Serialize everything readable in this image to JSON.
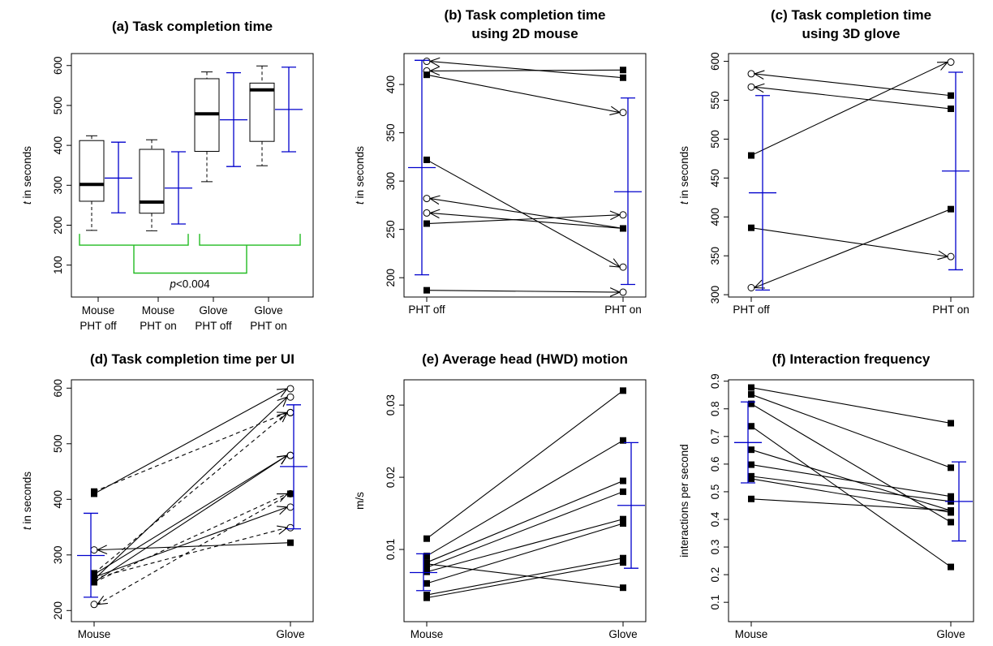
{
  "chart_data": [
    {
      "id": "a",
      "type": "box",
      "title": [
        "(a) Task completion time"
      ],
      "ylabel_italic": "t",
      "ylabel": " in seconds",
      "ylim": [
        20,
        630
      ],
      "yticks": [
        100,
        200,
        300,
        400,
        500,
        600
      ],
      "categories": [
        {
          "line1": "Mouse",
          "line2": "PHT off"
        },
        {
          "line1": "Mouse",
          "line2": "PHT on"
        },
        {
          "line1": "Glove",
          "line2": "PHT off"
        },
        {
          "line1": "Glove",
          "line2": "PHT on"
        }
      ],
      "boxes": [
        {
          "min": 187,
          "q1": 260,
          "median": 302,
          "q3": 412,
          "max": 424
        },
        {
          "min": 186,
          "q1": 230,
          "median": 258,
          "q3": 390,
          "max": 414
        },
        {
          "min": 309,
          "q1": 385,
          "median": 479,
          "q3": 567,
          "max": 584
        },
        {
          "min": 349,
          "q1": 410,
          "median": 539,
          "q3": 556,
          "max": 599
        }
      ],
      "mean_sd": [
        {
          "mean": 318,
          "lo": 231,
          "hi": 408
        },
        {
          "mean": 293,
          "lo": 203,
          "hi": 384
        },
        {
          "mean": 464,
          "lo": 347,
          "hi": 582
        },
        {
          "mean": 490,
          "lo": 384,
          "hi": 596
        }
      ],
      "annotation": {
        "p_italic": "p",
        "p_rest": "<0.004"
      },
      "colors": {
        "mean": "#0000cc",
        "bracket": "#22bb22"
      }
    },
    {
      "id": "b",
      "type": "paired",
      "title": [
        "(b) Task completion time",
        "using 2D mouse"
      ],
      "ylabel_italic": "t",
      "ylabel": " in seconds",
      "ylim": [
        180,
        432
      ],
      "yticks": [
        200,
        250,
        300,
        350,
        400
      ],
      "categories": [
        "PHT off",
        "PHT on"
      ],
      "pairs": [
        {
          "from": 424,
          "to": 407,
          "arrow": "left"
        },
        {
          "from": 414,
          "to": 415,
          "arrow": "left"
        },
        {
          "from": 410,
          "to": 371,
          "arrow": "right"
        },
        {
          "from": 322,
          "to": 211,
          "arrow": "right"
        },
        {
          "from": 282,
          "to": 251,
          "arrow": "left"
        },
        {
          "from": 267,
          "to": 251,
          "arrow": "left"
        },
        {
          "from": 256,
          "to": 265,
          "arrow": "right"
        },
        {
          "from": 187,
          "to": 185,
          "arrow": "right"
        }
      ],
      "mean_sd": [
        {
          "mean": 314,
          "lo": 203,
          "hi": 425
        },
        {
          "mean": 289,
          "lo": 193,
          "hi": 386
        }
      ]
    },
    {
      "id": "c",
      "type": "paired",
      "title": [
        "(c) Task completion time",
        "using 3D glove"
      ],
      "ylabel_italic": "t",
      "ylabel": " in seconds",
      "ylim": [
        297,
        610
      ],
      "yticks": [
        300,
        350,
        400,
        450,
        500,
        550,
        600
      ],
      "categories": [
        "PHT off",
        "PHT on"
      ],
      "pairs": [
        {
          "from": 584,
          "to": 556,
          "arrow": "left"
        },
        {
          "from": 567,
          "to": 539,
          "arrow": "left"
        },
        {
          "from": 479,
          "to": 599,
          "arrow": "right"
        },
        {
          "from": 386,
          "to": 349,
          "arrow": "right"
        },
        {
          "from": 309,
          "to": 410,
          "arrow": "left"
        }
      ],
      "mean_sd": [
        {
          "mean": 431,
          "lo": 306,
          "hi": 556
        },
        {
          "mean": 459,
          "lo": 332,
          "hi": 586
        }
      ]
    },
    {
      "id": "d",
      "type": "paired",
      "title": [
        "(d) Task completion time per UI"
      ],
      "ylabel_italic": "t",
      "ylabel": " in seconds",
      "ylim": [
        180,
        615
      ],
      "yticks": [
        200,
        300,
        400,
        500,
        600
      ],
      "categories": [
        "Mouse",
        "Glove"
      ],
      "pairs": [
        {
          "from": 410,
          "to": 599,
          "arrow": "right",
          "dash": false
        },
        {
          "from": 414,
          "to": 556,
          "arrow": "right",
          "dash": true
        },
        {
          "from": 256,
          "to": 584,
          "arrow": "right",
          "dash": false
        },
        {
          "from": 267,
          "to": 556,
          "arrow": "right",
          "dash": true
        },
        {
          "from": 251,
          "to": 479,
          "arrow": "right",
          "dash": false
        },
        {
          "from": 265,
          "to": 479,
          "arrow": "right",
          "dash": false
        },
        {
          "from": 251,
          "to": 410,
          "arrow": "right",
          "dash": true
        },
        {
          "from": 260,
          "to": 386,
          "arrow": "right",
          "dash": false
        },
        {
          "from": 258,
          "to": 349,
          "arrow": "right",
          "dash": true
        },
        {
          "from": 309,
          "to": 322,
          "arrow": "left",
          "dash": false
        },
        {
          "from": 211,
          "to": 410,
          "arrow": "left",
          "dash": true
        }
      ],
      "mean_sd": [
        {
          "mean": 299,
          "lo": 224,
          "hi": 375
        },
        {
          "mean": 459,
          "lo": 347,
          "hi": 570
        }
      ]
    },
    {
      "id": "e",
      "type": "paired",
      "title": [
        "(e) Average head (HWD) motion"
      ],
      "ylabel_italic": "",
      "ylabel": "m/s",
      "ylim": [
        0.0,
        0.0335
      ],
      "yticks": [
        0.01,
        0.02,
        0.03
      ],
      "categories": [
        "Mouse",
        "Glove"
      ],
      "pairs": [
        {
          "from": 0.0115,
          "to": 0.032,
          "arrow": "none"
        },
        {
          "from": 0.0091,
          "to": 0.0251,
          "arrow": "none"
        },
        {
          "from": 0.0082,
          "to": 0.0195,
          "arrow": "none"
        },
        {
          "from": 0.0075,
          "to": 0.018,
          "arrow": "none"
        },
        {
          "from": 0.0069,
          "to": 0.0142,
          "arrow": "none"
        },
        {
          "from": 0.0053,
          "to": 0.0136,
          "arrow": "none"
        },
        {
          "from": 0.0037,
          "to": 0.0088,
          "arrow": "none"
        },
        {
          "from": 0.0033,
          "to": 0.0082,
          "arrow": "none"
        },
        {
          "from": 0.008,
          "to": 0.0047,
          "arrow": "none"
        }
      ],
      "mean_sd": [
        {
          "mean": 0.0068,
          "lo": 0.0043,
          "hi": 0.0094
        },
        {
          "mean": 0.0161,
          "lo": 0.0074,
          "hi": 0.0248
        }
      ]
    },
    {
      "id": "f",
      "type": "paired",
      "title": [
        "(f) Interaction frequency"
      ],
      "ylabel_italic": "",
      "ylabel": "interactions per second",
      "ylim": [
        0.03,
        0.905
      ],
      "yticks": [
        0.1,
        0.2,
        0.3,
        0.4,
        0.5,
        0.6,
        0.7,
        0.8,
        0.9
      ],
      "categories": [
        "Mouse",
        "Glove"
      ],
      "pairs": [
        {
          "from": 0.877,
          "to": 0.748,
          "arrow": "none"
        },
        {
          "from": 0.852,
          "to": 0.587,
          "arrow": "none"
        },
        {
          "from": 0.818,
          "to": 0.39,
          "arrow": "none"
        },
        {
          "from": 0.737,
          "to": 0.228,
          "arrow": "none"
        },
        {
          "from": 0.652,
          "to": 0.432,
          "arrow": "none"
        },
        {
          "from": 0.598,
          "to": 0.483,
          "arrow": "none"
        },
        {
          "from": 0.556,
          "to": 0.465,
          "arrow": "none"
        },
        {
          "from": 0.547,
          "to": 0.425,
          "arrow": "none"
        },
        {
          "from": 0.474,
          "to": 0.432,
          "arrow": "none"
        }
      ],
      "mean_sd": [
        {
          "mean": 0.678,
          "lo": 0.532,
          "hi": 0.825
        },
        {
          "mean": 0.465,
          "lo": 0.322,
          "hi": 0.608
        }
      ]
    }
  ]
}
